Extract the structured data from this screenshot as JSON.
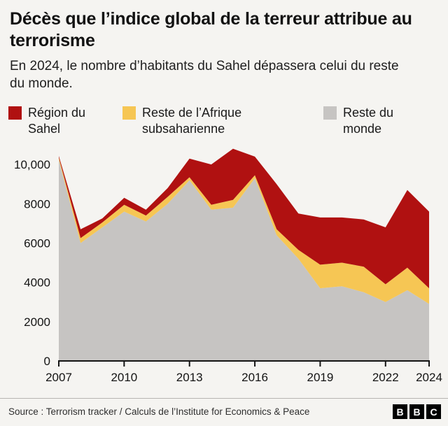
{
  "header": {
    "title": "Décès que l’indice global de la terreur attribue au terrorisme",
    "subtitle": "En 2024, le nombre d’habitants du Sahel dépassera celui du reste du monde."
  },
  "legend": [
    {
      "label": "Région du Sahel",
      "color": "#b01111"
    },
    {
      "label": "Reste de l’Afrique subsaharienne",
      "color": "#f6c654"
    },
    {
      "label": "Reste du monde",
      "color": "#c6c4c2"
    }
  ],
  "chart_data": {
    "type": "area",
    "stacked": true,
    "title": "Décès que l’indice global de la terreur attribue au terrorisme",
    "xlabel": "",
    "ylabel": "",
    "grid": false,
    "legend_position": "top",
    "x": [
      2007,
      2008,
      2009,
      2010,
      2011,
      2012,
      2013,
      2014,
      2015,
      2016,
      2017,
      2018,
      2019,
      2020,
      2021,
      2022,
      2023,
      2024
    ],
    "series": [
      {
        "key": "reste-du-monde",
        "name": "Reste du monde",
        "color": "#c6c4c2",
        "values": [
          10250,
          6000,
          6800,
          7600,
          7100,
          8000,
          9200,
          7700,
          7800,
          9300,
          6400,
          5200,
          3700,
          3800,
          3500,
          3000,
          3600,
          2900
        ]
      },
      {
        "key": "reste-afrique-subsaharienne",
        "name": "Reste de l’Afrique subsaharienne",
        "color": "#f6c654",
        "values": [
          100,
          250,
          250,
          350,
          300,
          350,
          150,
          250,
          400,
          150,
          300,
          450,
          1200,
          1200,
          1300,
          900,
          1150,
          800
        ]
      },
      {
        "key": "region-du-sahel",
        "name": "Région du Sahel",
        "color": "#b01111",
        "values": [
          80,
          450,
          200,
          350,
          300,
          450,
          950,
          2050,
          2600,
          950,
          2300,
          1850,
          2400,
          2300,
          2400,
          2900,
          3950,
          3900
        ]
      }
    ],
    "ylim": [
      0,
      11000
    ],
    "yticks": [
      {
        "value": 0,
        "label": "0"
      },
      {
        "value": 2000,
        "label": "2000"
      },
      {
        "value": 4000,
        "label": "4000"
      },
      {
        "value": 6000,
        "label": "6000"
      },
      {
        "value": 8000,
        "label": "8000"
      },
      {
        "value": 10000,
        "label": "10,000"
      }
    ],
    "xticks": [
      {
        "value": 2007,
        "label": "2007"
      },
      {
        "value": 2010,
        "label": "2010"
      },
      {
        "value": 2013,
        "label": "2013"
      },
      {
        "value": 2016,
        "label": "2016"
      },
      {
        "value": 2019,
        "label": "2019"
      },
      {
        "value": 2022,
        "label": "2022"
      },
      {
        "value": 2024,
        "label": "2024"
      }
    ]
  },
  "footer": {
    "source": "Source : Terrorism tracker / Calculs de l’Institute for Economics & Peace",
    "logo_letters": [
      "B",
      "B",
      "C"
    ]
  }
}
